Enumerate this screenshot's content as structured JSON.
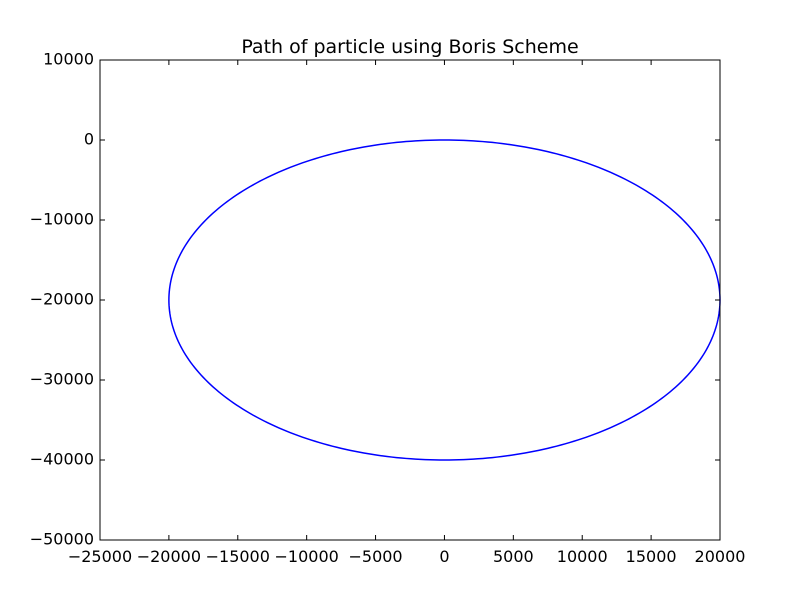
{
  "chart_data": {
    "type": "line",
    "title": "Path of particle using Boris Scheme",
    "xlabel": "",
    "ylabel": "",
    "xlim": [
      -25000,
      20000
    ],
    "ylim": [
      -50000,
      10000
    ],
    "x_ticks": [
      -25000,
      -20000,
      -15000,
      -10000,
      -5000,
      0,
      5000,
      10000,
      15000,
      20000
    ],
    "x_tick_labels": [
      "−25000",
      "−20000",
      "−15000",
      "−10000",
      "−5000",
      "0",
      "5000",
      "10000",
      "15000",
      "20000"
    ],
    "y_ticks": [
      10000,
      0,
      -10000,
      -20000,
      -30000,
      -40000,
      -50000
    ],
    "y_tick_labels": [
      "10000",
      "0",
      "−10000",
      "−20000",
      "−30000",
      "−40000",
      "−50000"
    ],
    "grid": false,
    "series": [
      {
        "color": "#0000ff",
        "shape": "ellipse",
        "center": [
          0,
          -20000
        ],
        "x_radius": 20000,
        "y_radius": 20000,
        "x": [
          20000,
          17321,
          10000,
          0,
          -10000,
          -17321,
          -20000,
          -17321,
          -10000,
          0,
          10000,
          17321,
          20000
        ],
        "y": [
          -20000,
          -10000,
          -2679,
          0,
          -2679,
          -10000,
          -20000,
          -30000,
          -37321,
          -40000,
          -37321,
          -30000,
          -20000
        ]
      }
    ]
  }
}
